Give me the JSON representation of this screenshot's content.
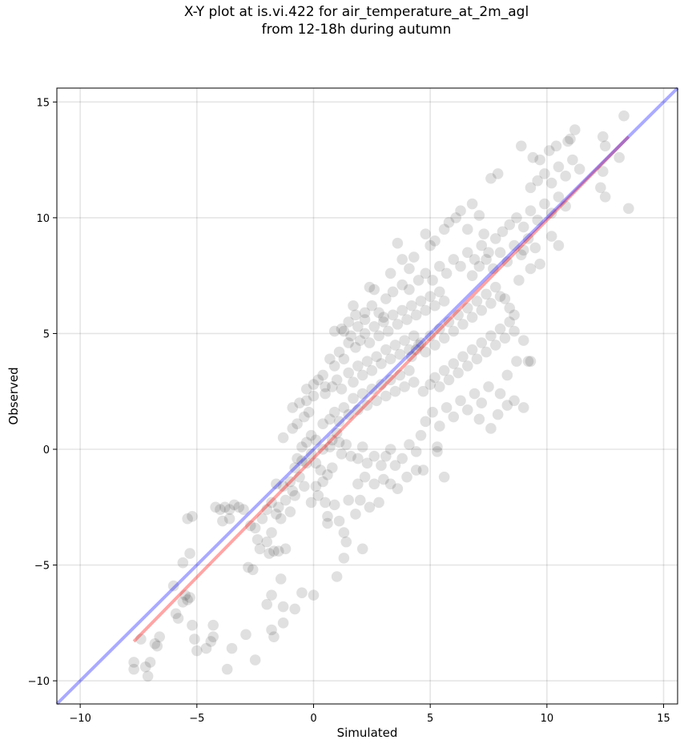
{
  "chart_data": {
    "type": "scatter",
    "title": "X-Y plot at is.vi.422 for air_temperature_at_2m_agl",
    "subtitle": "from 12-18h during autumn",
    "xlabel": "Simulated",
    "ylabel": "Observed",
    "xlim": [
      -11,
      15.6
    ],
    "ylim": [
      -11,
      15.6
    ],
    "xticks": [
      -10,
      -5,
      0,
      5,
      10,
      15
    ],
    "yticks": [
      -10,
      -5,
      0,
      5,
      10,
      15
    ],
    "xtick_labels": [
      "−10",
      "−5",
      "0",
      "5",
      "10",
      "15"
    ],
    "ytick_labels": [
      "−10",
      "−5",
      "0",
      "5",
      "10",
      "15"
    ],
    "grid": true,
    "point_color": "#000000",
    "point_alpha": 0.12,
    "identity_line": {
      "from": [
        -11,
        -11
      ],
      "to": [
        15.6,
        15.6
      ],
      "color": "#0000ff"
    },
    "regression_line": {
      "from": [
        -7.7,
        -8.3
      ],
      "to": [
        13.5,
        13.5
      ],
      "color": "#ff0000"
    },
    "points": [
      [
        -7.7,
        -9.5
      ],
      [
        -7.7,
        -9.2
      ],
      [
        -7.4,
        -8.2
      ],
      [
        -7.2,
        -9.4
      ],
      [
        -7.1,
        -9.8
      ],
      [
        -7.0,
        -9.2
      ],
      [
        -6.8,
        -8.4
      ],
      [
        -6.7,
        -8.5
      ],
      [
        -6.6,
        -8.1
      ],
      [
        -6.0,
        -5.9
      ],
      [
        -5.9,
        -7.1
      ],
      [
        -5.8,
        -7.3
      ],
      [
        -5.6,
        -6.6
      ],
      [
        -5.5,
        -6.3
      ],
      [
        -5.4,
        -6.5
      ],
      [
        -5.3,
        -6.4
      ],
      [
        -5.3,
        -4.5
      ],
      [
        -5.2,
        -7.6
      ],
      [
        -5.1,
        -8.2
      ],
      [
        -5.0,
        -8.7
      ],
      [
        -4.6,
        -8.6
      ],
      [
        -4.4,
        -8.3
      ],
      [
        -4.3,
        -7.6
      ],
      [
        -4.3,
        -8.1
      ],
      [
        -5.2,
        -2.9
      ],
      [
        -5.4,
        -3.0
      ],
      [
        -5.6,
        -4.9
      ],
      [
        -4.2,
        -2.5
      ],
      [
        -4.0,
        -2.6
      ],
      [
        -3.8,
        -2.5
      ],
      [
        -3.6,
        -2.6
      ],
      [
        -3.4,
        -2.4
      ],
      [
        -3.2,
        -2.5
      ],
      [
        -3.0,
        -2.6
      ],
      [
        -3.9,
        -3.1
      ],
      [
        -3.6,
        -3.0
      ],
      [
        -3.7,
        -9.5
      ],
      [
        -3.5,
        -8.6
      ],
      [
        -2.9,
        -8.0
      ],
      [
        -2.5,
        -9.1
      ],
      [
        -2.0,
        -6.7
      ],
      [
        -1.8,
        -6.3
      ],
      [
        -1.8,
        -7.8
      ],
      [
        -1.7,
        -8.1
      ],
      [
        -1.3,
        -7.5
      ],
      [
        -1.3,
        -6.8
      ],
      [
        -1.4,
        -5.6
      ],
      [
        -0.8,
        -6.9
      ],
      [
        -0.5,
        -6.2
      ],
      [
        -2.8,
        -5.1
      ],
      [
        -2.6,
        -5.2
      ],
      [
        -2.3,
        -4.3
      ],
      [
        -2.0,
        -4.0
      ],
      [
        -1.9,
        -4.5
      ],
      [
        -1.7,
        -4.4
      ],
      [
        -1.5,
        -4.4
      ],
      [
        -1.2,
        -4.3
      ],
      [
        -1.8,
        -3.6
      ],
      [
        -2.4,
        -3.9
      ],
      [
        -2.7,
        -3.3
      ],
      [
        -2.5,
        -3.4
      ],
      [
        -2.2,
        -3.0
      ],
      [
        -2.0,
        -2.6
      ],
      [
        -1.8,
        -2.3
      ],
      [
        -1.6,
        -2.8
      ],
      [
        -1.5,
        -2.5
      ],
      [
        -1.4,
        -3.0
      ],
      [
        -1.2,
        -2.2
      ],
      [
        -1.0,
        -2.7
      ],
      [
        -0.8,
        -2.0
      ],
      [
        -1.6,
        -1.5
      ],
      [
        -1.3,
        -1.6
      ],
      [
        -1.0,
        -1.4
      ],
      [
        -0.9,
        -1.8
      ],
      [
        -0.6,
        -1.2
      ],
      [
        -0.4,
        -1.6
      ],
      [
        -0.7,
        -0.4
      ],
      [
        -0.5,
        -0.5
      ],
      [
        -0.3,
        -0.6
      ],
      [
        -0.1,
        -0.2
      ],
      [
        -0.5,
        0.1
      ],
      [
        -0.3,
        0.3
      ],
      [
        -0.1,
        0.6
      ],
      [
        0.1,
        0.4
      ],
      [
        -0.8,
        -0.8
      ],
      [
        -1.3,
        0.5
      ],
      [
        -0.9,
        0.9
      ],
      [
        -0.7,
        1.1
      ],
      [
        -0.4,
        1.4
      ],
      [
        -0.2,
        1.6
      ],
      [
        -0.9,
        1.8
      ],
      [
        -0.6,
        2.0
      ],
      [
        -0.3,
        2.1
      ],
      [
        0.0,
        2.3
      ],
      [
        -0.3,
        2.6
      ],
      [
        0.0,
        2.8
      ],
      [
        0.2,
        3.0
      ],
      [
        0.5,
        2.7
      ],
      [
        0.4,
        3.2
      ],
      [
        0.7,
        3.9
      ],
      [
        0.9,
        3.6
      ],
      [
        1.1,
        4.2
      ],
      [
        1.3,
        3.9
      ],
      [
        1.3,
        5.1
      ],
      [
        1.5,
        5.5
      ],
      [
        1.6,
        4.9
      ],
      [
        0.1,
        -0.6
      ],
      [
        0.3,
        -0.9
      ],
      [
        0.4,
        -1.4
      ],
      [
        0.6,
        -1.1
      ],
      [
        0.8,
        -0.8
      ],
      [
        0.1,
        -1.6
      ],
      [
        -0.1,
        -2.3
      ],
      [
        0.2,
        -2.0
      ],
      [
        0.5,
        -2.3
      ],
      [
        0.6,
        -2.9
      ],
      [
        0.9,
        -2.4
      ],
      [
        0.6,
        -3.2
      ],
      [
        1.1,
        -3.1
      ],
      [
        1.3,
        -3.6
      ],
      [
        1.4,
        -4.0
      ],
      [
        1.3,
        -4.7
      ],
      [
        1.0,
        -5.5
      ],
      [
        0.0,
        -6.3
      ],
      [
        2.1,
        -4.3
      ],
      [
        1.5,
        -2.2
      ],
      [
        1.8,
        -2.8
      ],
      [
        2.0,
        -2.2
      ],
      [
        2.4,
        -2.5
      ],
      [
        2.8,
        -2.3
      ],
      [
        1.9,
        -1.5
      ],
      [
        2.2,
        -1.2
      ],
      [
        2.6,
        -1.5
      ],
      [
        3.0,
        -1.3
      ],
      [
        3.3,
        -1.5
      ],
      [
        3.6,
        -1.7
      ],
      [
        4.0,
        -1.2
      ],
      [
        4.4,
        -0.9
      ],
      [
        4.7,
        -0.9
      ],
      [
        5.3,
        -0.1
      ],
      [
        5.6,
        -1.2
      ],
      [
        5.3,
        0.1
      ],
      [
        0.4,
        0.0
      ],
      [
        0.7,
        0.1
      ],
      [
        0.8,
        0.4
      ],
      [
        1.0,
        0.7
      ],
      [
        1.1,
        0.3
      ],
      [
        1.2,
        -0.2
      ],
      [
        1.4,
        0.2
      ],
      [
        1.6,
        -0.3
      ],
      [
        1.9,
        -0.4
      ],
      [
        2.1,
        0.1
      ],
      [
        2.3,
        -0.6
      ],
      [
        2.6,
        -0.3
      ],
      [
        2.9,
        -0.7
      ],
      [
        3.1,
        -0.3
      ],
      [
        3.3,
        0.0
      ],
      [
        3.5,
        -0.7
      ],
      [
        3.8,
        -0.4
      ],
      [
        4.1,
        0.2
      ],
      [
        4.4,
        -0.1
      ],
      [
        4.6,
        0.6
      ],
      [
        0.4,
        1.1
      ],
      [
        0.7,
        1.3
      ],
      [
        0.9,
        1.6
      ],
      [
        1.1,
        1.2
      ],
      [
        1.3,
        1.8
      ],
      [
        1.5,
        1.5
      ],
      [
        1.7,
        2.2
      ],
      [
        1.9,
        1.7
      ],
      [
        2.1,
        2.4
      ],
      [
        2.3,
        1.9
      ],
      [
        2.5,
        2.6
      ],
      [
        2.7,
        2.1
      ],
      [
        2.9,
        2.8
      ],
      [
        3.1,
        2.3
      ],
      [
        3.3,
        3.0
      ],
      [
        3.5,
        2.5
      ],
      [
        3.7,
        3.2
      ],
      [
        3.9,
        2.7
      ],
      [
        4.1,
        3.4
      ],
      [
        4.3,
        2.9
      ],
      [
        0.5,
        2.4
      ],
      [
        0.8,
        2.7
      ],
      [
        1.0,
        3.0
      ],
      [
        1.2,
        2.6
      ],
      [
        1.5,
        3.3
      ],
      [
        1.7,
        2.9
      ],
      [
        1.9,
        3.6
      ],
      [
        2.1,
        3.2
      ],
      [
        2.3,
        3.8
      ],
      [
        2.5,
        3.4
      ],
      [
        2.7,
        4.0
      ],
      [
        2.9,
        3.7
      ],
      [
        3.1,
        4.3
      ],
      [
        3.3,
        3.9
      ],
      [
        3.5,
        4.5
      ],
      [
        3.7,
        4.1
      ],
      [
        3.9,
        4.7
      ],
      [
        4.1,
        4.3
      ],
      [
        4.3,
        4.9
      ],
      [
        4.5,
        4.5
      ],
      [
        1.8,
        4.4
      ],
      [
        2.0,
        4.7
      ],
      [
        2.2,
        5.0
      ],
      [
        2.4,
        4.6
      ],
      [
        2.6,
        5.3
      ],
      [
        2.8,
        4.9
      ],
      [
        3.0,
        5.5
      ],
      [
        3.2,
        5.1
      ],
      [
        3.4,
        5.8
      ],
      [
        3.6,
        5.4
      ],
      [
        3.8,
        6.0
      ],
      [
        4.0,
        5.6
      ],
      [
        4.2,
        6.2
      ],
      [
        4.4,
        5.8
      ],
      [
        4.6,
        6.4
      ],
      [
        4.8,
        6.0
      ],
      [
        5.0,
        6.6
      ],
      [
        5.2,
        6.2
      ],
      [
        5.4,
        6.8
      ],
      [
        5.6,
        6.4
      ],
      [
        1.8,
        5.8
      ],
      [
        2.2,
        5.6
      ],
      [
        2.5,
        6.2
      ],
      [
        2.8,
        5.9
      ],
      [
        3.1,
        6.5
      ],
      [
        3.4,
        6.8
      ],
      [
        3.8,
        7.1
      ],
      [
        4.1,
        6.9
      ],
      [
        4.5,
        7.3
      ],
      [
        4.8,
        7.6
      ],
      [
        5.1,
        7.3
      ],
      [
        5.4,
        7.9
      ],
      [
        5.7,
        7.6
      ],
      [
        6.0,
        8.2
      ],
      [
        6.3,
        7.9
      ],
      [
        6.6,
        8.5
      ],
      [
        6.9,
        8.2
      ],
      [
        7.2,
        8.8
      ],
      [
        7.5,
        8.5
      ],
      [
        7.8,
        9.1
      ],
      [
        4.2,
        4.0
      ],
      [
        4.4,
        4.3
      ],
      [
        4.6,
        4.6
      ],
      [
        4.8,
        4.2
      ],
      [
        5.0,
        4.9
      ],
      [
        5.2,
        4.5
      ],
      [
        5.4,
        5.2
      ],
      [
        5.6,
        4.8
      ],
      [
        5.8,
        5.5
      ],
      [
        6.0,
        5.1
      ],
      [
        6.2,
        5.8
      ],
      [
        6.4,
        5.4
      ],
      [
        6.6,
        6.1
      ],
      [
        6.8,
        5.7
      ],
      [
        7.0,
        6.4
      ],
      [
        7.2,
        6.0
      ],
      [
        7.4,
        6.7
      ],
      [
        7.6,
        6.3
      ],
      [
        7.8,
        7.0
      ],
      [
        8.0,
        6.6
      ],
      [
        4.7,
        2.5
      ],
      [
        5.0,
        2.8
      ],
      [
        5.2,
        3.1
      ],
      [
        5.4,
        2.7
      ],
      [
        5.6,
        3.4
      ],
      [
        5.8,
        3.0
      ],
      [
        6.0,
        3.7
      ],
      [
        6.2,
        3.3
      ],
      [
        6.4,
        4.0
      ],
      [
        6.6,
        3.6
      ],
      [
        6.8,
        4.3
      ],
      [
        7.0,
        3.9
      ],
      [
        7.2,
        4.6
      ],
      [
        7.4,
        4.2
      ],
      [
        7.6,
        4.9
      ],
      [
        7.8,
        4.5
      ],
      [
        8.0,
        5.2
      ],
      [
        8.2,
        4.8
      ],
      [
        8.4,
        5.5
      ],
      [
        8.6,
        5.1
      ],
      [
        4.8,
        1.2
      ],
      [
        5.1,
        1.6
      ],
      [
        5.4,
        1.0
      ],
      [
        5.7,
        1.8
      ],
      [
        6.0,
        1.4
      ],
      [
        6.3,
        2.1
      ],
      [
        6.6,
        1.7
      ],
      [
        6.9,
        2.4
      ],
      [
        7.2,
        2.0
      ],
      [
        7.5,
        2.7
      ],
      [
        7.1,
        1.3
      ],
      [
        7.6,
        0.9
      ],
      [
        8.0,
        2.4
      ],
      [
        8.3,
        1.9
      ],
      [
        8.6,
        2.1
      ],
      [
        9.0,
        1.8
      ],
      [
        8.7,
        3.8
      ],
      [
        9.2,
        3.8
      ],
      [
        8.3,
        3.2
      ],
      [
        7.9,
        1.5
      ],
      [
        6.8,
        7.5
      ],
      [
        7.1,
        7.9
      ],
      [
        7.4,
        8.2
      ],
      [
        7.7,
        7.8
      ],
      [
        8.0,
        8.5
      ],
      [
        8.3,
        8.1
      ],
      [
        8.6,
        8.8
      ],
      [
        8.9,
        8.4
      ],
      [
        9.2,
        9.1
      ],
      [
        9.5,
        8.7
      ],
      [
        8.1,
        9.4
      ],
      [
        8.4,
        9.7
      ],
      [
        8.7,
        10.0
      ],
      [
        9.0,
        9.6
      ],
      [
        9.3,
        10.3
      ],
      [
        9.6,
        9.9
      ],
      [
        9.9,
        10.6
      ],
      [
        10.2,
        10.2
      ],
      [
        10.5,
        10.9
      ],
      [
        10.8,
        10.5
      ],
      [
        9.3,
        11.3
      ],
      [
        9.6,
        11.6
      ],
      [
        9.9,
        11.9
      ],
      [
        10.2,
        11.5
      ],
      [
        10.5,
        12.2
      ],
      [
        10.8,
        11.8
      ],
      [
        11.1,
        12.5
      ],
      [
        11.4,
        12.1
      ],
      [
        9.7,
        12.5
      ],
      [
        10.1,
        12.9
      ],
      [
        10.4,
        13.1
      ],
      [
        10.9,
        13.3
      ],
      [
        11.2,
        13.8
      ],
      [
        11.0,
        13.4
      ],
      [
        12.4,
        13.5
      ],
      [
        12.5,
        13.1
      ],
      [
        13.3,
        14.4
      ],
      [
        13.1,
        12.6
      ],
      [
        12.3,
        11.3
      ],
      [
        12.5,
        10.9
      ],
      [
        13.5,
        10.4
      ],
      [
        12.4,
        12.0
      ],
      [
        7.9,
        11.9
      ],
      [
        7.6,
        11.7
      ],
      [
        8.9,
        13.1
      ],
      [
        9.4,
        12.6
      ],
      [
        6.8,
        10.6
      ],
      [
        6.3,
        10.3
      ],
      [
        7.1,
        10.1
      ],
      [
        7.3,
        9.3
      ],
      [
        6.6,
        9.5
      ],
      [
        9.0,
        8.6
      ],
      [
        9.3,
        7.8
      ],
      [
        8.8,
        7.3
      ],
      [
        9.7,
        8.0
      ],
      [
        10.2,
        9.2
      ],
      [
        10.5,
        8.8
      ],
      [
        8.2,
        6.5
      ],
      [
        8.4,
        6.1
      ],
      [
        8.6,
        5.8
      ],
      [
        9.0,
        4.7
      ],
      [
        9.3,
        3.8
      ],
      [
        5.8,
        9.8
      ],
      [
        5.2,
        9.0
      ],
      [
        4.8,
        9.3
      ],
      [
        3.8,
        8.2
      ],
      [
        4.1,
        7.8
      ],
      [
        3.3,
        7.6
      ],
      [
        2.6,
        6.9
      ],
      [
        2.2,
        5.9
      ],
      [
        1.9,
        5.3
      ],
      [
        3.0,
        5.7
      ],
      [
        1.2,
        5.2
      ],
      [
        1.5,
        4.6
      ],
      [
        0.9,
        5.1
      ],
      [
        1.7,
        6.2
      ],
      [
        2.4,
        7.0
      ],
      [
        3.6,
        8.9
      ],
      [
        4.3,
        8.3
      ],
      [
        5.0,
        8.8
      ],
      [
        5.6,
        9.5
      ],
      [
        6.1,
        10.0
      ]
    ]
  }
}
